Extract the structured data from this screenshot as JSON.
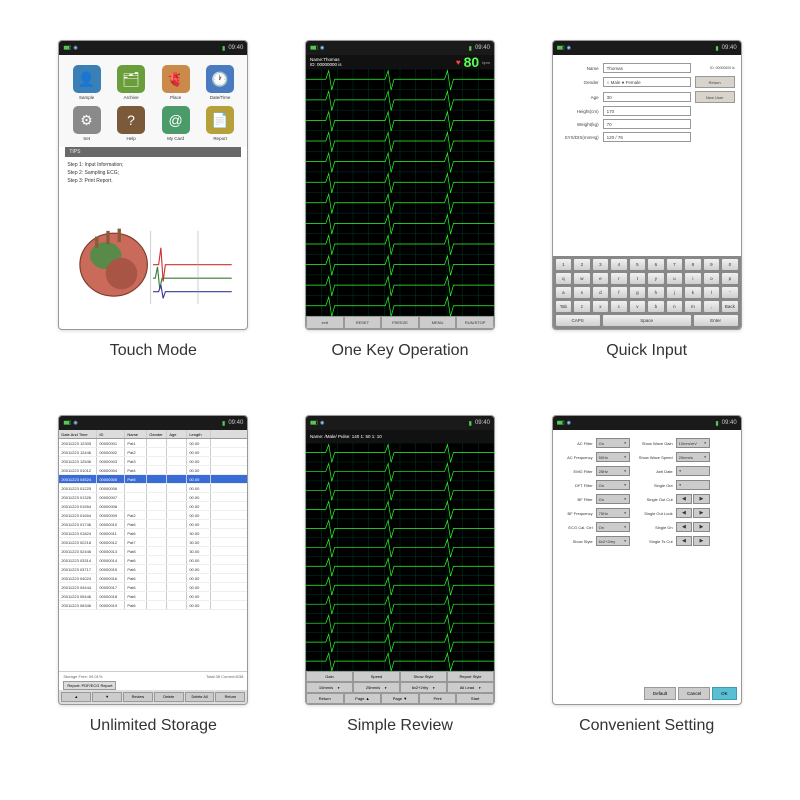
{
  "captions": {
    "touch": "Touch Mode",
    "onekey": "One Key Operation",
    "quick": "Quick Input",
    "storage": "Unlimited Storage",
    "review": "Simple Review",
    "setting": "Convenient Setting"
  },
  "status": {
    "time": "09:40"
  },
  "touch": {
    "icons": [
      {
        "label": "Sample",
        "bg": "#3a7fb5",
        "emoji": "👤"
      },
      {
        "label": "Archive",
        "bg": "#6a9e3a",
        "emoji": "🗂"
      },
      {
        "label": "Place",
        "bg": "#c98a4a",
        "emoji": "🫀"
      },
      {
        "label": "Date/Time",
        "bg": "#4a7abf",
        "emoji": "🕐"
      },
      {
        "label": "Set",
        "bg": "#8a8a8a",
        "emoji": "⚙"
      },
      {
        "label": "Help",
        "bg": "#7a5a3a",
        "emoji": "?"
      },
      {
        "label": "My Card",
        "bg": "#4a9a6a",
        "emoji": "@"
      },
      {
        "label": "Report",
        "bg": "#b5a03a",
        "emoji": "📄"
      }
    ],
    "tips_label": "TIPS",
    "steps": [
      "Step 1: Input Information;",
      "Step 2: Sampling ECG;",
      "Step 3: Print Report."
    ]
  },
  "ecg": {
    "header": {
      "name": "Name:Thomas",
      "id": "ID: 00000000 is"
    },
    "hr": 80,
    "bpm": "bpm",
    "buttons": [
      "exit",
      "RESET",
      "FREEZE",
      "MENU",
      "RUN/STOP"
    ],
    "grid": {
      "rows": 12,
      "cols": 12,
      "line_color": "#003820",
      "trace_color": "#2aff2a",
      "bg": "#000000"
    }
  },
  "quick": {
    "fields": [
      {
        "label": "Name",
        "value": "Thomas"
      },
      {
        "label": "Gender",
        "value": "○ Male  ● Female"
      },
      {
        "label": "Age",
        "value": "30"
      },
      {
        "label": "Height(cm)",
        "value": "170"
      },
      {
        "label": "Weight(kg)",
        "value": "70"
      },
      {
        "label": "SYS/DIS(mmHg)",
        "value": "120   / 76"
      }
    ],
    "side_buttons": [
      "Return",
      "New User"
    ],
    "id_label": "ID: 00000000 is",
    "keyboard": {
      "r1": [
        "1",
        "2",
        "3",
        "4",
        "5",
        "6",
        "7",
        "8",
        "9",
        "0"
      ],
      "r2": [
        "q",
        "w",
        "e",
        "r",
        "t",
        "y",
        "u",
        "i",
        "o",
        "p"
      ],
      "r3": [
        "a",
        "s",
        "d",
        "f",
        "g",
        "h",
        "j",
        "k",
        "l",
        "'"
      ],
      "r4": [
        "Tab",
        "z",
        "x",
        "c",
        "v",
        "b",
        "n",
        "m",
        ",",
        "Back"
      ],
      "r5": [
        "CAPS",
        "",
        "Space",
        "",
        "Enter"
      ]
    }
  },
  "storage": {
    "columns": [
      "Date And Time",
      "ID",
      "Name",
      "Gender",
      "Age",
      "Length"
    ],
    "rows": [
      [
        "20011223 12305",
        "00000001",
        "Pat1",
        "",
        "",
        "00.00"
      ],
      [
        "20011223 12446",
        "00000002",
        "Pat2",
        "",
        "",
        "00.00"
      ],
      [
        "20011223 12546",
        "00000003",
        "Pat3",
        "",
        "",
        "00.00"
      ],
      [
        "20011223 01012",
        "00000004",
        "Pat4",
        "",
        "",
        "00.00"
      ],
      [
        "20011223 04524",
        "00000005",
        "Pat5",
        "",
        "",
        "00.00"
      ],
      [
        "20011223 01225",
        "00000006",
        "",
        "",
        "",
        "00.00"
      ],
      [
        "20011223 01326",
        "00000007",
        "",
        "",
        "",
        "00.00"
      ],
      [
        "20011223 01554",
        "00000008",
        "",
        "",
        "",
        "00.00"
      ],
      [
        "20011223 01654",
        "00000009",
        "Pat2",
        "",
        "",
        "00.00"
      ],
      [
        "20011223 01746",
        "00000010",
        "Pat6",
        "",
        "",
        "00.00"
      ],
      [
        "20011223 01824",
        "00000011",
        "Pat6",
        "",
        "",
        "30.00"
      ],
      [
        "20011223 02218",
        "00000012",
        "Pat7",
        "",
        "",
        "30.00"
      ],
      [
        "20011223 02446",
        "00000013",
        "Pat8",
        "",
        "",
        "30.00"
      ],
      [
        "20011223 03314",
        "00000014",
        "Pat6",
        "",
        "",
        "00.00"
      ],
      [
        "20011223 03717",
        "00000015",
        "Pat6",
        "",
        "",
        "00.00"
      ],
      [
        "20011223 04024",
        "00000016",
        "Pat6",
        "",
        "",
        "00.00"
      ],
      [
        "20011223 04444",
        "00000017",
        "Pat6",
        "",
        "",
        "00.00"
      ],
      [
        "20011223 05446",
        "00000018",
        "Pat6",
        "",
        "",
        "00.00"
      ],
      [
        "20011223 06346",
        "00000019",
        "Pat6",
        "",
        "",
        "00.00"
      ]
    ],
    "selected": 4,
    "footer_left": "Storage Free: 99.01%",
    "footer_right": "Total:38          Current:8/38",
    "report_btn": "Report: PDF/ECG Report",
    "buttons": [
      "▲",
      "▼",
      "Review",
      "Delete",
      "Delete All",
      "Return"
    ]
  },
  "review": {
    "header": "Name: /Male/ Pulse: 140    1: 50 1: 10",
    "row1_labels": [
      "Gain",
      "Speed",
      "Show Style",
      "Report Style"
    ],
    "row1_values": [
      "10mm/s",
      "25mm/s",
      "6x2+2rhy",
      "All Lead"
    ],
    "row2": [
      "Return",
      "Page ▲",
      "Page ▼",
      "Print",
      "Start"
    ]
  },
  "setting": {
    "left": [
      {
        "l": "AC Filter",
        "v": "On"
      },
      {
        "l": "AC Frequency",
        "v": "50Hz"
      },
      {
        "l": "EMG Filter",
        "v": "25Hz"
      },
      {
        "l": "DFT Filter",
        "v": "On"
      },
      {
        "l": "BF Filter",
        "v": "On"
      },
      {
        "l": "BF Frequency",
        "v": "75Hz"
      },
      {
        "l": "ECG Cal. Ctrl",
        "v": "On"
      },
      {
        "l": "Show Style",
        "v": "6x2+2rhy"
      }
    ],
    "right": [
      {
        "l": "Show Wave Gain",
        "v": "10mm/mV"
      },
      {
        "l": "Show Wave Speed",
        "v": "25mm/s"
      },
      {
        "l": "Anti Date",
        "v": ""
      },
      {
        "l": "Single Out",
        "v": ""
      },
      {
        "l": "Single Out Cut",
        "v": "arrows"
      },
      {
        "l": "Single Out Look",
        "v": "arrows"
      },
      {
        "l": "Single On",
        "v": "arrows"
      },
      {
        "l": "Single Ts Cut",
        "v": "arrows"
      }
    ],
    "buttons": [
      "Default",
      "Cancel",
      "OK"
    ]
  }
}
